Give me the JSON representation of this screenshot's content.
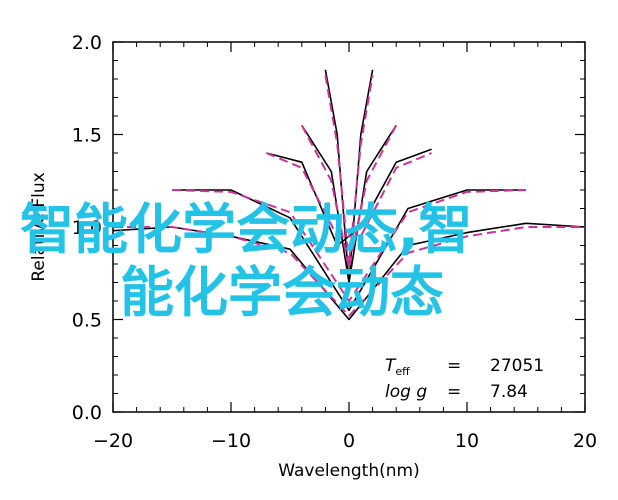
{
  "chart_data": {
    "type": "line",
    "xlabel": "Wavelength(nm)",
    "ylabel": "Relative Flux",
    "xlim": [
      -20,
      20
    ],
    "ylim": [
      0.0,
      2.0
    ],
    "x_ticks": [
      -20,
      -10,
      0,
      10,
      20
    ],
    "x_tick_labels": [
      "−20",
      "−10",
      "0",
      "10",
      "20"
    ],
    "y_ticks": [
      0.0,
      0.5,
      1.0,
      1.5,
      2.0
    ],
    "y_tick_labels": [
      "0.0",
      "0.5",
      "1.0",
      "1.5",
      "2.0"
    ],
    "grid": false,
    "colors": {
      "observed": "#000000",
      "model": "#cc3399",
      "watermark": "#22c3e6"
    },
    "series": [
      {
        "style": "solid-black",
        "segments": [
          {
            "x": [
              -20,
              -15,
              -10,
              -5,
              0,
              5,
              10,
              15,
              20
            ],
            "y": [
              0.98,
              1.0,
              0.95,
              0.88,
              0.5,
              0.9,
              0.97,
              1.02,
              1.0
            ]
          },
          {
            "x": [
              -15,
              -10,
              -5,
              0,
              5,
              10,
              15
            ],
            "y": [
              1.2,
              1.2,
              1.05,
              0.55,
              1.1,
              1.2,
              1.2
            ]
          },
          {
            "x": [
              -7,
              -4,
              -1,
              1,
              4,
              7
            ],
            "y": [
              1.4,
              1.35,
              0.9,
              1.0,
              1.35,
              1.42
            ]
          },
          {
            "x": [
              -4,
              -1.5,
              0,
              1.5,
              4
            ],
            "y": [
              1.55,
              1.3,
              0.7,
              1.3,
              1.55
            ]
          },
          {
            "x": [
              -2,
              -1,
              0,
              1,
              2
            ],
            "y": [
              1.85,
              1.5,
              0.7,
              1.5,
              1.85
            ]
          }
        ]
      },
      {
        "style": "dashed-magenta",
        "segments": [
          {
            "x": [
              -20,
              -15,
              -10,
              -5,
              0,
              5,
              10,
              15,
              20
            ],
            "y": [
              1.0,
              1.0,
              0.95,
              0.86,
              0.52,
              0.86,
              0.95,
              1.0,
              1.0
            ]
          },
          {
            "x": [
              -15,
              -10,
              -5,
              0,
              5,
              10,
              15
            ],
            "y": [
              1.2,
              1.19,
              1.08,
              0.6,
              1.08,
              1.19,
              1.2
            ]
          },
          {
            "x": [
              -7,
              -4,
              -1,
              1,
              4,
              7
            ],
            "y": [
              1.4,
              1.32,
              0.95,
              0.95,
              1.32,
              1.4
            ]
          },
          {
            "x": [
              -4,
              -1.5,
              0,
              1.5,
              4
            ],
            "y": [
              1.55,
              1.25,
              0.78,
              1.25,
              1.55
            ]
          },
          {
            "x": [
              -2,
              -1,
              0,
              1,
              2
            ],
            "y": [
              1.82,
              1.45,
              0.8,
              1.45,
              1.82
            ]
          }
        ]
      }
    ],
    "annotations": [
      {
        "label_main": "T",
        "label_sub": "eff",
        "eq": "=",
        "value": "27051"
      },
      {
        "label_main": "log g",
        "label_sub": "",
        "eq": "=",
        "value": "7.84"
      }
    ]
  },
  "watermark": {
    "line1": "智能化学会动态,智",
    "line2": "能化学会动态"
  }
}
